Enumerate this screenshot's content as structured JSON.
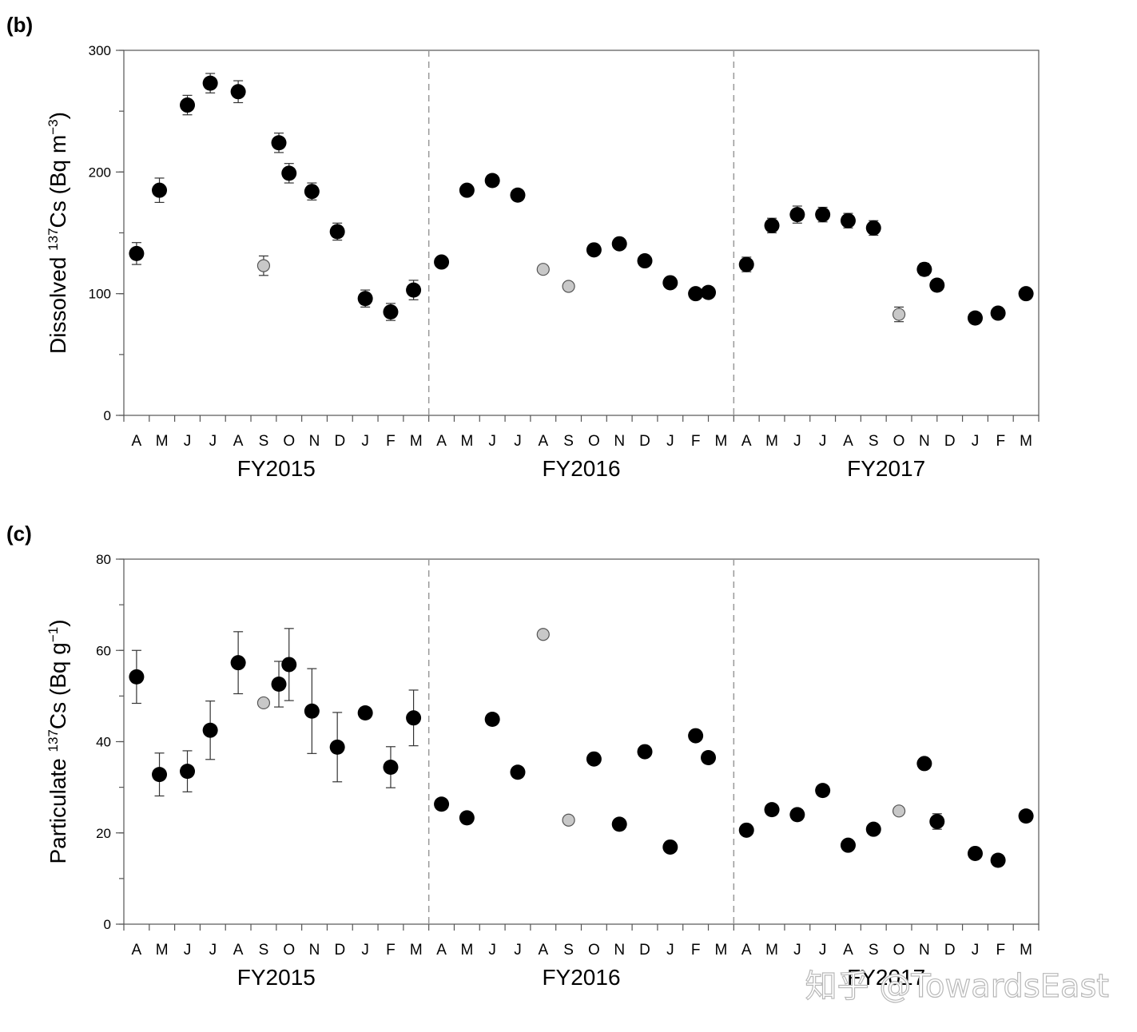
{
  "watermark": "知乎 @TowardsEast",
  "colors": {
    "main_point": "#000000",
    "excluded_point": "#c8c8c8",
    "axis": "#555555",
    "divider": "#999999"
  },
  "chart_data": [
    {
      "type": "scatter",
      "panel_label": "(b)",
      "ylabel_prefix": "Dissolved ",
      "ylabel_sup": "137",
      "ylabel_main": "Cs (Bq m",
      "ylabel_exp": "−3",
      "ylabel_suffix": ")",
      "ylim": [
        0,
        300
      ],
      "yticks": [
        0,
        100,
        200,
        300
      ],
      "xlim": [
        0,
        36
      ],
      "month_labels": [
        "A",
        "M",
        "J",
        "J",
        "A",
        "S",
        "O",
        "N",
        "D",
        "J",
        "F",
        "M",
        "A",
        "M",
        "J",
        "J",
        "A",
        "S",
        "O",
        "N",
        "D",
        "J",
        "F",
        "M",
        "A",
        "M",
        "J",
        "J",
        "A",
        "S",
        "O",
        "N",
        "D",
        "J",
        "F",
        "M"
      ],
      "fiscal_years": [
        "FY2015",
        "FY2016",
        "FY2017"
      ],
      "points": [
        {
          "x": 0.5,
          "y": 133,
          "err": 9,
          "excluded": false
        },
        {
          "x": 1.4,
          "y": 185,
          "err": 10,
          "excluded": false
        },
        {
          "x": 2.5,
          "y": 255,
          "err": 8,
          "excluded": false
        },
        {
          "x": 3.4,
          "y": 273,
          "err": 8,
          "excluded": false
        },
        {
          "x": 4.5,
          "y": 266,
          "err": 9,
          "excluded": false
        },
        {
          "x": 5.5,
          "y": 123,
          "err": 8,
          "excluded": true
        },
        {
          "x": 6.1,
          "y": 224,
          "err": 8,
          "excluded": false
        },
        {
          "x": 6.5,
          "y": 199,
          "err": 8,
          "excluded": false
        },
        {
          "x": 7.4,
          "y": 184,
          "err": 7,
          "excluded": false
        },
        {
          "x": 8.4,
          "y": 151,
          "err": 7,
          "excluded": false
        },
        {
          "x": 9.5,
          "y": 96,
          "err": 7,
          "excluded": false
        },
        {
          "x": 10.5,
          "y": 85,
          "err": 7,
          "excluded": false
        },
        {
          "x": 11.4,
          "y": 103,
          "err": 8,
          "excluded": false
        },
        {
          "x": 12.5,
          "y": 126,
          "err": 0,
          "excluded": false
        },
        {
          "x": 13.5,
          "y": 185,
          "err": 0,
          "excluded": false
        },
        {
          "x": 14.5,
          "y": 193,
          "err": 0,
          "excluded": false
        },
        {
          "x": 15.5,
          "y": 181,
          "err": 0,
          "excluded": false
        },
        {
          "x": 16.5,
          "y": 120,
          "err": 0,
          "excluded": true
        },
        {
          "x": 17.5,
          "y": 106,
          "err": 0,
          "excluded": true
        },
        {
          "x": 18.5,
          "y": 136,
          "err": 0,
          "excluded": false
        },
        {
          "x": 19.5,
          "y": 141,
          "err": 0,
          "excluded": false
        },
        {
          "x": 20.5,
          "y": 127,
          "err": 0,
          "excluded": false
        },
        {
          "x": 21.5,
          "y": 109,
          "err": 0,
          "excluded": false
        },
        {
          "x": 22.5,
          "y": 100,
          "err": 0,
          "excluded": false
        },
        {
          "x": 23.0,
          "y": 101,
          "err": 0,
          "excluded": false
        },
        {
          "x": 24.5,
          "y": 124,
          "err": 6,
          "excluded": false
        },
        {
          "x": 25.5,
          "y": 156,
          "err": 6,
          "excluded": false
        },
        {
          "x": 26.5,
          "y": 165,
          "err": 7,
          "excluded": false
        },
        {
          "x": 27.5,
          "y": 165,
          "err": 6,
          "excluded": false
        },
        {
          "x": 28.5,
          "y": 160,
          "err": 6,
          "excluded": false
        },
        {
          "x": 29.5,
          "y": 154,
          "err": 6,
          "excluded": false
        },
        {
          "x": 30.5,
          "y": 83,
          "err": 6,
          "excluded": true
        },
        {
          "x": 31.5,
          "y": 120,
          "err": 5,
          "excluded": false
        },
        {
          "x": 32.0,
          "y": 107,
          "err": 0,
          "excluded": false
        },
        {
          "x": 33.5,
          "y": 80,
          "err": 0,
          "excluded": false
        },
        {
          "x": 34.4,
          "y": 84,
          "err": 0,
          "excluded": false
        },
        {
          "x": 35.5,
          "y": 100,
          "err": 0,
          "excluded": false
        }
      ]
    },
    {
      "type": "scatter",
      "panel_label": "(c)",
      "ylabel_prefix": "Particulate ",
      "ylabel_sup": "137",
      "ylabel_main": "Cs (Bq g",
      "ylabel_exp": "−1",
      "ylabel_suffix": ")",
      "ylim": [
        0,
        80
      ],
      "yticks": [
        0,
        20,
        40,
        60,
        80
      ],
      "xlim": [
        0,
        36
      ],
      "month_labels": [
        "A",
        "M",
        "J",
        "J",
        "A",
        "S",
        "O",
        "N",
        "D",
        "J",
        "F",
        "M",
        "A",
        "M",
        "J",
        "J",
        "A",
        "S",
        "O",
        "N",
        "D",
        "J",
        "F",
        "M",
        "A",
        "M",
        "J",
        "J",
        "A",
        "S",
        "O",
        "N",
        "D",
        "J",
        "F",
        "M"
      ],
      "fiscal_years": [
        "FY2015",
        "FY2016",
        "FY2017"
      ],
      "points": [
        {
          "x": 0.5,
          "y": 54.2,
          "err": 5.8,
          "excluded": false
        },
        {
          "x": 1.4,
          "y": 32.8,
          "err": 4.7,
          "excluded": false
        },
        {
          "x": 2.5,
          "y": 33.5,
          "err": 4.5,
          "excluded": false
        },
        {
          "x": 3.4,
          "y": 42.5,
          "err": 6.4,
          "excluded": false
        },
        {
          "x": 4.5,
          "y": 57.3,
          "err": 6.8,
          "excluded": false
        },
        {
          "x": 5.5,
          "y": 48.5,
          "err": 0.8,
          "excluded": true
        },
        {
          "x": 6.1,
          "y": 52.6,
          "err": 5.0,
          "excluded": false
        },
        {
          "x": 6.5,
          "y": 56.9,
          "err": 7.9,
          "excluded": false
        },
        {
          "x": 7.4,
          "y": 46.7,
          "err": 9.3,
          "excluded": false
        },
        {
          "x": 8.4,
          "y": 38.8,
          "err": 7.6,
          "excluded": false
        },
        {
          "x": 9.5,
          "y": 46.3,
          "err": 1.2,
          "excluded": false
        },
        {
          "x": 10.5,
          "y": 34.4,
          "err": 4.5,
          "excluded": false
        },
        {
          "x": 11.4,
          "y": 45.2,
          "err": 6.1,
          "excluded": false
        },
        {
          "x": 12.5,
          "y": 26.3,
          "err": 0,
          "excluded": false
        },
        {
          "x": 13.5,
          "y": 23.3,
          "err": 0,
          "excluded": false
        },
        {
          "x": 14.5,
          "y": 44.9,
          "err": 0,
          "excluded": false
        },
        {
          "x": 15.5,
          "y": 33.3,
          "err": 0,
          "excluded": false
        },
        {
          "x": 16.5,
          "y": 63.5,
          "err": 0,
          "excluded": true
        },
        {
          "x": 17.5,
          "y": 22.8,
          "err": 0,
          "excluded": true
        },
        {
          "x": 18.5,
          "y": 36.2,
          "err": 0,
          "excluded": false
        },
        {
          "x": 19.5,
          "y": 21.9,
          "err": 0,
          "excluded": false
        },
        {
          "x": 20.5,
          "y": 37.8,
          "err": 0,
          "excluded": false
        },
        {
          "x": 21.5,
          "y": 16.9,
          "err": 0,
          "excluded": false
        },
        {
          "x": 22.5,
          "y": 41.3,
          "err": 0,
          "excluded": false
        },
        {
          "x": 23.0,
          "y": 36.5,
          "err": 0,
          "excluded": false
        },
        {
          "x": 24.5,
          "y": 20.6,
          "err": 0,
          "excluded": false
        },
        {
          "x": 25.5,
          "y": 25.1,
          "err": 0,
          "excluded": false
        },
        {
          "x": 26.5,
          "y": 24.0,
          "err": 0,
          "excluded": false
        },
        {
          "x": 27.5,
          "y": 29.3,
          "err": 0,
          "excluded": false
        },
        {
          "x": 28.5,
          "y": 17.3,
          "err": 0,
          "excluded": false
        },
        {
          "x": 29.5,
          "y": 20.8,
          "err": 0,
          "excluded": false
        },
        {
          "x": 30.5,
          "y": 24.8,
          "err": 0,
          "excluded": true
        },
        {
          "x": 31.5,
          "y": 35.2,
          "err": 0,
          "excluded": false
        },
        {
          "x": 32.0,
          "y": 22.5,
          "err": 1.7,
          "excluded": false
        },
        {
          "x": 33.5,
          "y": 15.5,
          "err": 0,
          "excluded": false
        },
        {
          "x": 34.4,
          "y": 14.0,
          "err": 0,
          "excluded": false
        },
        {
          "x": 35.5,
          "y": 23.7,
          "err": 1.0,
          "excluded": false
        }
      ]
    }
  ]
}
